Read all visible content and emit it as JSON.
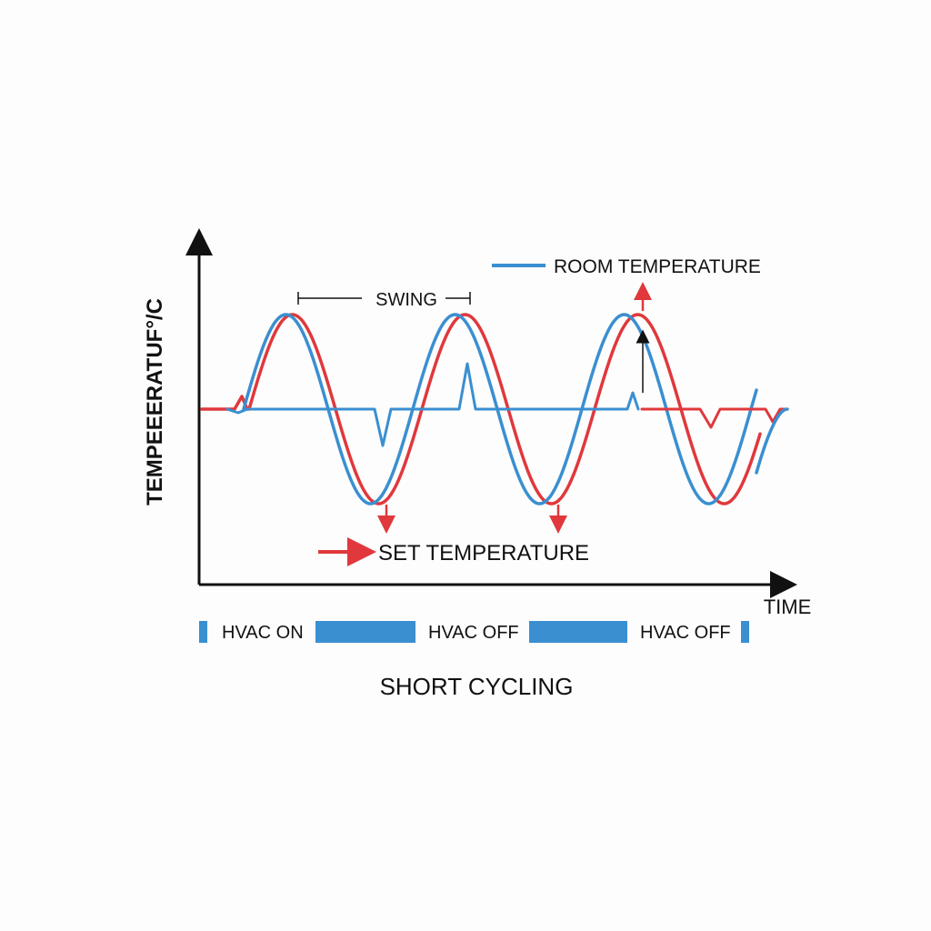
{
  "title": "SHORT CYCLING",
  "axes": {
    "y_label": "TEMPEEERATUF°/C",
    "x_label": "TIME"
  },
  "annotations": {
    "swing": "SWING"
  },
  "legend": {
    "room": "ROOM TEMPERATURE",
    "set": "SET TEMPERATURE"
  },
  "status_bar": {
    "labels": [
      "HVAC ON",
      "HVAC OFF",
      "HVAC OFF"
    ]
  },
  "colors": {
    "room": "#3a8fd0",
    "set": "#e0383c",
    "axis": "#111111",
    "bar": "#3a8fd0"
  },
  "chart_data": {
    "type": "line",
    "series": [
      {
        "name": "ROOM TEMPERATURE",
        "color": "#3a8fd0",
        "shape": "oscillation, 3 cycles, slightly leading"
      },
      {
        "name": "SET TEMPERATURE",
        "color": "#e0383c",
        "shape": "oscillation, 3 cycles, slightly lagging"
      }
    ],
    "cycles": 3,
    "xlabel": "TIME",
    "ylabel": "TEMPEEERATUF°/C",
    "grid": false
  }
}
